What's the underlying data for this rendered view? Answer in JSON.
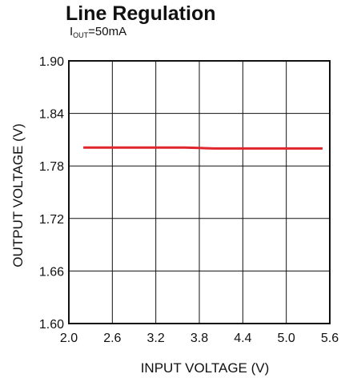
{
  "chart_data": {
    "type": "line",
    "title": "Line Regulation",
    "subtitle": {
      "prefix": "I",
      "subscript": "OUT",
      "suffix": "=50mA"
    },
    "xlabel": "INPUT VOLTAGE (V)",
    "ylabel": "OUTPUT VOLTAGE (V)",
    "xlim": [
      2.0,
      5.6
    ],
    "ylim": [
      1.6,
      1.9
    ],
    "x_ticks": [
      "2.0",
      "2.6",
      "3.2",
      "3.8",
      "4.4",
      "5.0",
      "5.6"
    ],
    "y_ticks": [
      "1.90",
      "1.84",
      "1.78",
      "1.72",
      "1.66",
      "1.60"
    ],
    "grid": true,
    "series": [
      {
        "color": "#e0262c",
        "x": [
          2.2,
          2.6,
          3.0,
          3.4,
          3.6,
          3.8,
          4.0,
          4.4,
          4.8,
          5.2,
          5.5
        ],
        "y": [
          1.801,
          1.801,
          1.801,
          1.801,
          1.801,
          1.8005,
          1.8,
          1.8,
          1.8,
          1.8,
          1.8
        ]
      }
    ]
  }
}
